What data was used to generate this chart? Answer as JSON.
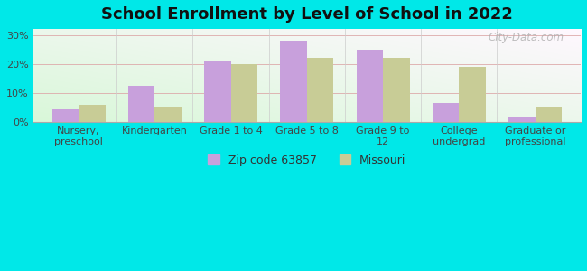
{
  "title": "School Enrollment by Level of School in 2022",
  "categories": [
    "Nursery,\npreschool",
    "Kindergarten",
    "Grade 1 to 4",
    "Grade 5 to 8",
    "Grade 9 to\n12",
    "College\nundergrad",
    "Graduate or\nprofessional"
  ],
  "zip_values": [
    4.5,
    12.5,
    21.0,
    28.0,
    25.0,
    6.5,
    1.5
  ],
  "mo_values": [
    6.0,
    5.0,
    20.0,
    22.0,
    22.0,
    19.0,
    5.0
  ],
  "zip_color": "#c8a0dc",
  "mo_color": "#c8cc96",
  "background_color": "#00e8e8",
  "ylim": [
    0,
    32
  ],
  "yticks": [
    0,
    10,
    20,
    30
  ],
  "ytick_labels": [
    "0%",
    "10%",
    "20%",
    "30%"
  ],
  "legend_label_zip": "Zip code 63857",
  "legend_label_mo": "Missouri",
  "bar_width": 0.35,
  "title_fontsize": 13,
  "tick_fontsize": 8,
  "legend_fontsize": 9,
  "watermark": "City-Data.com"
}
